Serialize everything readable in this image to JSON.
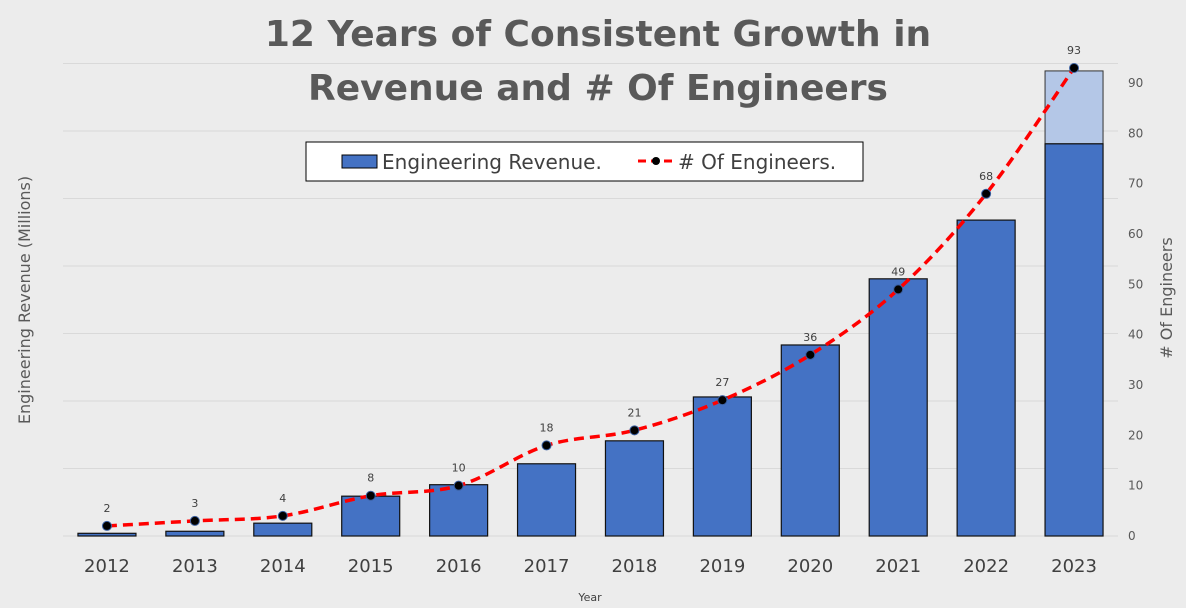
{
  "chart_data": {
    "type": "bar+line",
    "title_lines": [
      "12 Years of Consistent Growth in",
      "Revenue and # Of Engineers"
    ],
    "xlabel": "Year",
    "ylabel_left": "Engineering Revenue (Millions)",
    "ylabel_right": "# Of Engineers",
    "categories": [
      "2012",
      "2013",
      "2014",
      "2015",
      "2016",
      "2017",
      "2018",
      "2019",
      "2020",
      "2021",
      "2022",
      "2023"
    ],
    "left_axis": {
      "tick_labels_shown": false,
      "gridlines": 7,
      "ylim": [
        0,
        7
      ]
    },
    "right_axis": {
      "ylim": [
        0,
        93
      ],
      "ticks": [
        0,
        10,
        20,
        30,
        40,
        50,
        60,
        70,
        80,
        90
      ]
    },
    "grid": true,
    "legend": {
      "placement": "top-center",
      "entries": [
        "Engineering Revenue.",
        "# Of Engineers."
      ]
    },
    "series": [
      {
        "name": "Engineering Revenue.",
        "type": "bar",
        "axis": "left",
        "color": "#4472c4",
        "values": [
          0.04,
          0.07,
          0.19,
          0.59,
          0.76,
          1.07,
          1.41,
          2.06,
          2.83,
          3.81,
          4.68,
          5.81
        ],
        "projected_extension": {
          "category": "2023",
          "top": 6.89,
          "color": "#b4c7e7"
        }
      },
      {
        "name": "# Of Engineers.",
        "type": "line",
        "axis": "right",
        "color": "#ff0000",
        "marker_color": "#000000",
        "dashed": true,
        "values": [
          2,
          3,
          4,
          8,
          10,
          18,
          21,
          27,
          36,
          49,
          68,
          93
        ],
        "data_labels": [
          "2",
          "3",
          "4",
          "8",
          "10",
          "18",
          "21",
          "27",
          "36",
          "49",
          "68",
          "93"
        ]
      }
    ]
  }
}
